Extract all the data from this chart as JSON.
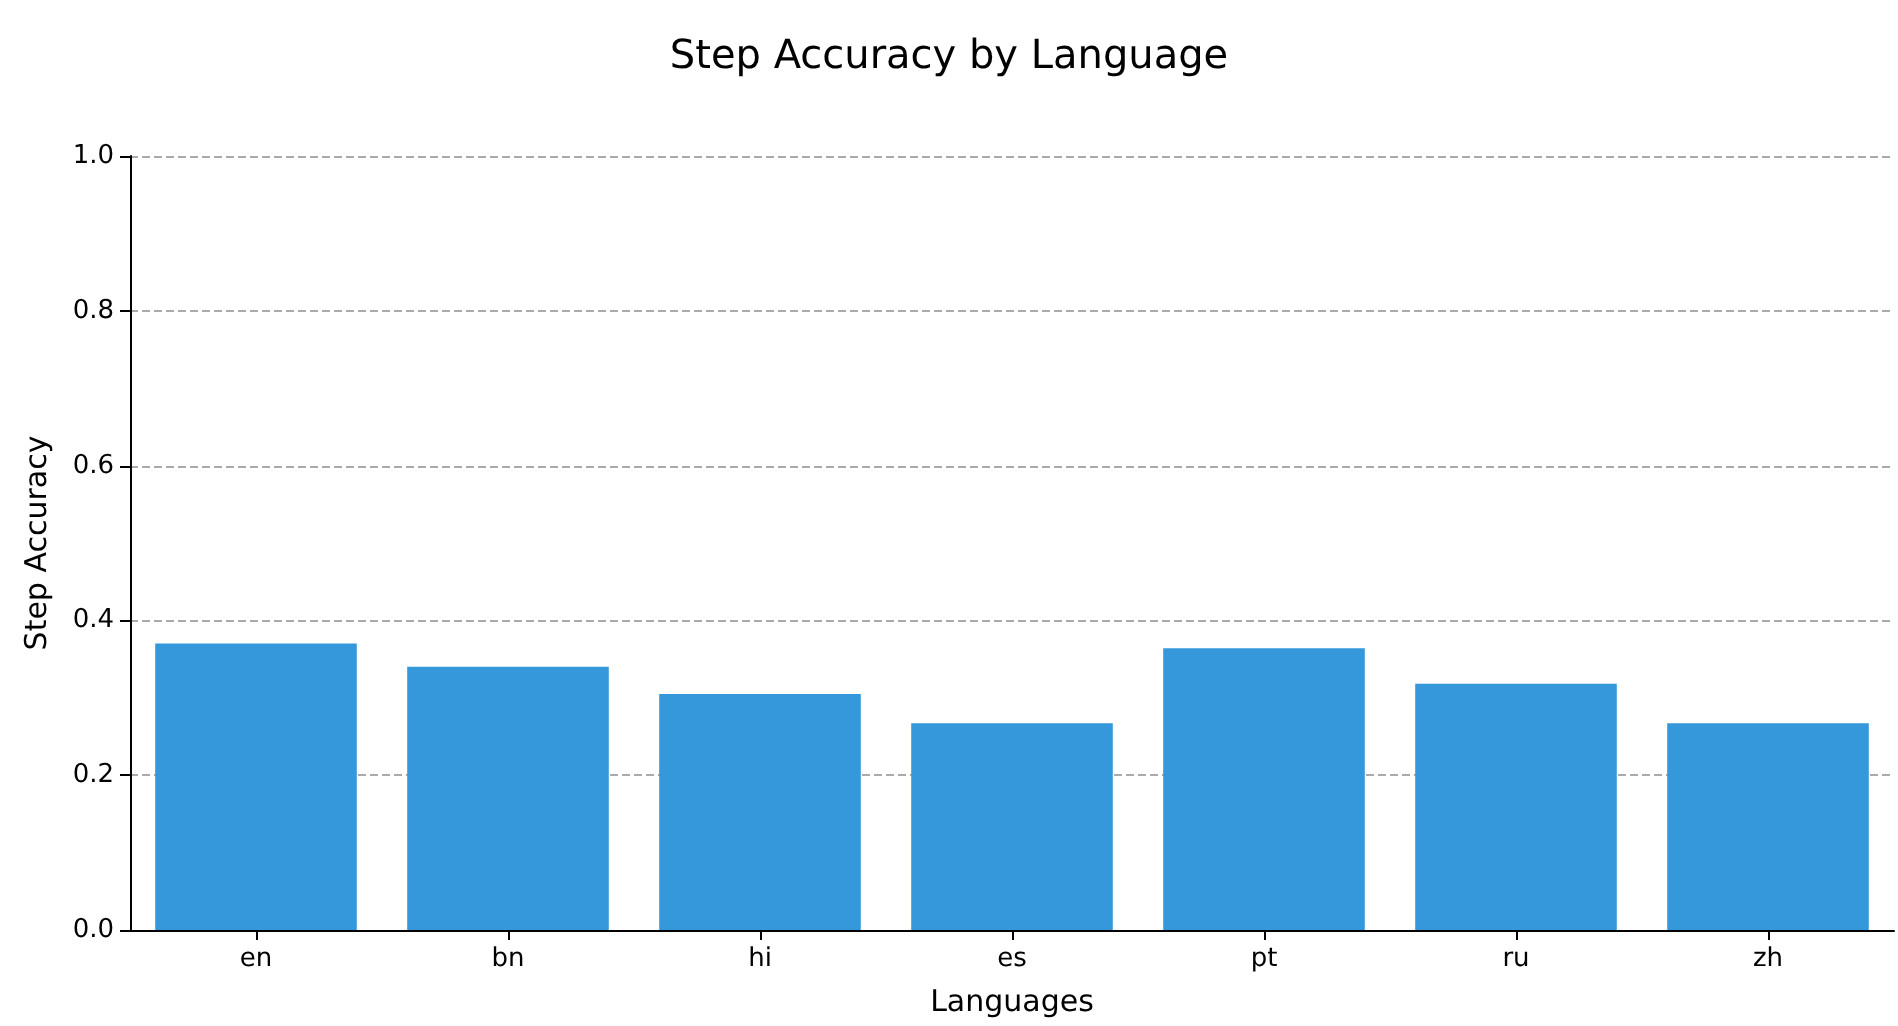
{
  "chart_data": {
    "type": "bar",
    "title": "Step Accuracy by Language",
    "xlabel": "Languages",
    "ylabel": "Step Accuracy",
    "categories": [
      "en",
      "bn",
      "hi",
      "es",
      "pt",
      "ru",
      "zh"
    ],
    "values": [
      0.37,
      0.34,
      0.305,
      0.267,
      0.364,
      0.318,
      0.267
    ],
    "color": "#3498db",
    "ylim": [
      0,
      1.0
    ],
    "yticks": [
      {
        "value": 0,
        "label": "0.0"
      },
      {
        "value": 0.2,
        "label": "0.2"
      },
      {
        "value": 0.4,
        "label": "0.4"
      },
      {
        "value": 0.6,
        "label": "0.6"
      },
      {
        "value": 0.8,
        "label": "0.8"
      },
      {
        "value": 1.0,
        "label": "1.0"
      }
    ],
    "grid": "y"
  }
}
